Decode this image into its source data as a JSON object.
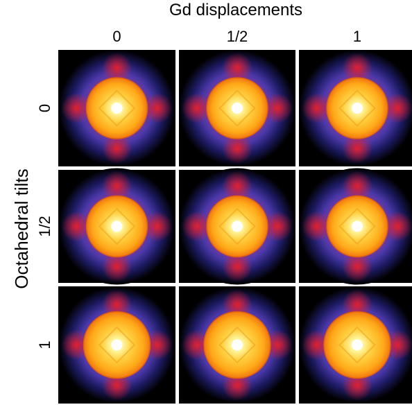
{
  "title": "Gd displacements",
  "columns": [
    "0",
    "1/2",
    "1"
  ],
  "row_title": "Octahedral tilts",
  "rows": [
    "0",
    "1/2",
    "1"
  ]
}
